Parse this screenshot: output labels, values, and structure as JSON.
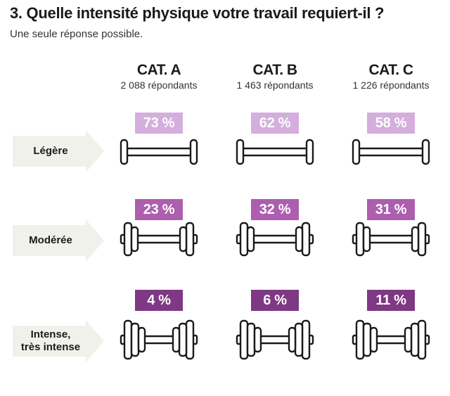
{
  "title": "3. Quelle intensité physique votre travail requiert-il ?",
  "subtitle": "Une seule réponse possible.",
  "chart_data": {
    "type": "table",
    "categories": [
      {
        "name": "CAT. A",
        "respondents": "2 088 répondants"
      },
      {
        "name": "CAT. B",
        "respondents": "1 463 répondants"
      },
      {
        "name": "CAT. C",
        "respondents": "1 226 répondants"
      }
    ],
    "rows": [
      {
        "label": "Légère",
        "values": [
          73,
          62,
          58
        ],
        "labels": [
          "73 %",
          "62 %",
          "58 %"
        ],
        "color": "#d4aedc",
        "weights": 1
      },
      {
        "label": "Modérée",
        "values": [
          23,
          32,
          31
        ],
        "labels": [
          "23 %",
          "32 %",
          "31 %"
        ],
        "color": "#ad5eae",
        "weights": 2
      },
      {
        "label": "Intense,\ntrès intense",
        "values": [
          4,
          6,
          11
        ],
        "labels": [
          "4 %",
          "6 %",
          "11 %"
        ],
        "color": "#7e3884",
        "weights": 3
      }
    ],
    "icon": "dumbbell-icon",
    "arrow_color": "#f1f1ec"
  }
}
